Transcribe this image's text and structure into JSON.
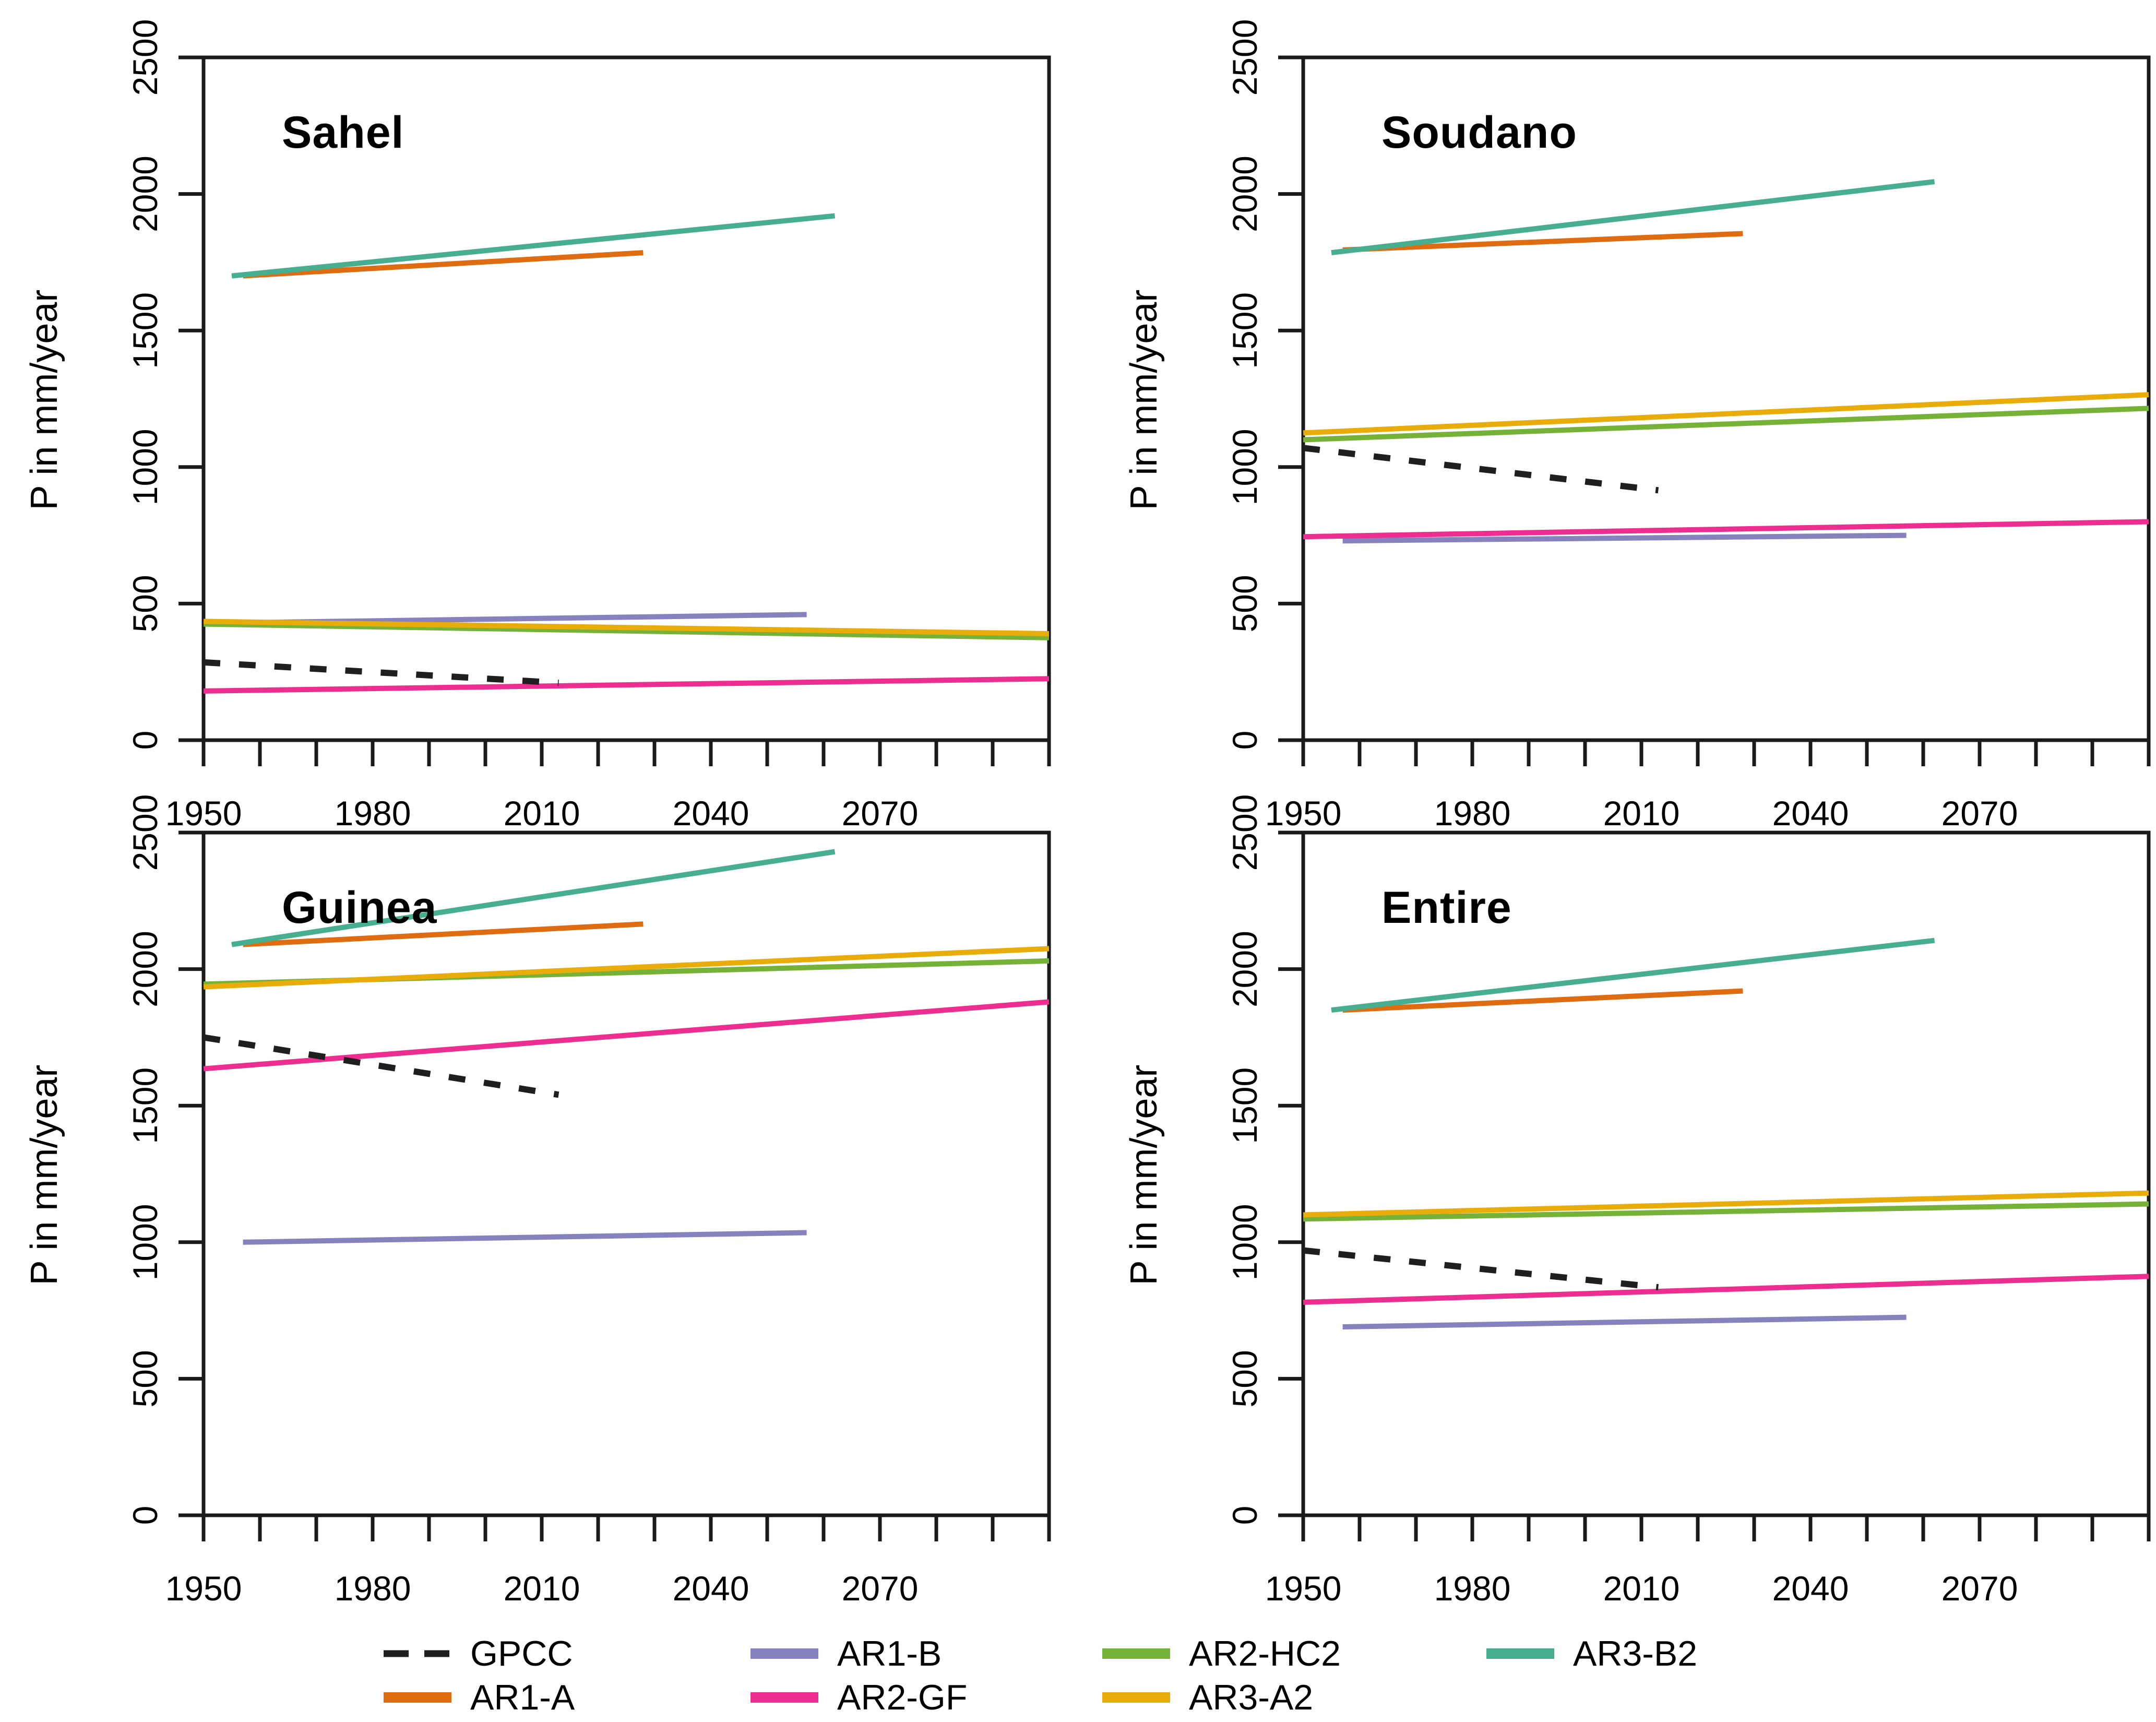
{
  "figure": {
    "background": "#ffffff",
    "frame_color": "#1a1a1a",
    "text_color": "#000000",
    "y_axis_label": "P in mm/year"
  },
  "series_styles": [
    {
      "name": "GPCC",
      "color": "#1f1f1f",
      "dashed": true
    },
    {
      "name": "AR1-A",
      "color": "#e06c12",
      "dashed": false
    },
    {
      "name": "AR1-B",
      "color": "#8781be",
      "dashed": false
    },
    {
      "name": "AR2-GF",
      "color": "#ed2d90",
      "dashed": false
    },
    {
      "name": "AR2-HC2",
      "color": "#76b237",
      "dashed": false
    },
    {
      "name": "AR3-A2",
      "color": "#e9ad0b",
      "dashed": false
    },
    {
      "name": "AR3-B2",
      "color": "#47af90",
      "dashed": false
    }
  ],
  "legend": {
    "columns": [
      [
        "GPCC",
        "AR1-A"
      ],
      [
        "AR1-B",
        "AR2-GF"
      ],
      [
        "AR2-HC2",
        "AR3-A2"
      ],
      [
        "AR3-B2"
      ]
    ]
  },
  "chart_data": [
    {
      "type": "line",
      "title": "Sahel",
      "xlabel": "",
      "ylabel": "P in mm/year",
      "xlim": [
        1950,
        2100
      ],
      "ylim": [
        0,
        2500
      ],
      "x_tick_interval": 10,
      "y_tick_interval": 500,
      "x_ticks_labeled": [
        1950,
        1980,
        2010,
        2040,
        2070
      ],
      "grid": false,
      "series": [
        {
          "name": "GPCC",
          "points": [
            [
              1950,
              285
            ],
            [
              2013,
              210
            ]
          ]
        },
        {
          "name": "AR1-A",
          "points": [
            [
              1957,
              1700
            ],
            [
              2028,
              1785
            ]
          ]
        },
        {
          "name": "AR1-B",
          "points": [
            [
              1957,
              430
            ],
            [
              2057,
              460
            ]
          ]
        },
        {
          "name": "AR2-GF",
          "points": [
            [
              1950,
              180
            ],
            [
              2100,
              225
            ]
          ]
        },
        {
          "name": "AR2-HC2",
          "points": [
            [
              1950,
              425
            ],
            [
              2100,
              375
            ]
          ]
        },
        {
          "name": "AR3-A2",
          "points": [
            [
              1950,
              435
            ],
            [
              2100,
              390
            ]
          ]
        },
        {
          "name": "AR3-B2",
          "points": [
            [
              1955,
              1700
            ],
            [
              2062,
              1920
            ]
          ]
        }
      ]
    },
    {
      "type": "line",
      "title": "Soudano",
      "xlabel": "",
      "ylabel": "P in mm/year",
      "xlim": [
        1950,
        2100
      ],
      "ylim": [
        0,
        2500
      ],
      "x_tick_interval": 10,
      "y_tick_interval": 500,
      "x_ticks_labeled": [
        1950,
        1980,
        2010,
        2040,
        2070
      ],
      "grid": false,
      "series": [
        {
          "name": "GPCC",
          "points": [
            [
              1950,
              1070
            ],
            [
              2013,
              915
            ]
          ]
        },
        {
          "name": "AR1-A",
          "points": [
            [
              1957,
              1795
            ],
            [
              2028,
              1855
            ]
          ]
        },
        {
          "name": "AR1-B",
          "points": [
            [
              1957,
              730
            ],
            [
              2057,
              750
            ]
          ]
        },
        {
          "name": "AR2-GF",
          "points": [
            [
              1950,
              745
            ],
            [
              2100,
              800
            ]
          ]
        },
        {
          "name": "AR2-HC2",
          "points": [
            [
              1950,
              1100
            ],
            [
              2100,
              1215
            ]
          ]
        },
        {
          "name": "AR3-A2",
          "points": [
            [
              1950,
              1125
            ],
            [
              2100,
              1265
            ]
          ]
        },
        {
          "name": "AR3-B2",
          "points": [
            [
              1955,
              1785
            ],
            [
              2062,
              2045
            ]
          ]
        }
      ]
    },
    {
      "type": "line",
      "title": "Guinea",
      "xlabel": "",
      "ylabel": "P in mm/year",
      "xlim": [
        1950,
        2100
      ],
      "ylim": [
        0,
        2500
      ],
      "x_tick_interval": 10,
      "y_tick_interval": 500,
      "x_ticks_labeled": [
        1950,
        1980,
        2010,
        2040,
        2070
      ],
      "grid": false,
      "series": [
        {
          "name": "GPCC",
          "points": [
            [
              1950,
              1750
            ],
            [
              2013,
              1540
            ]
          ]
        },
        {
          "name": "AR1-A",
          "points": [
            [
              1957,
              2090
            ],
            [
              2028,
              2165
            ]
          ]
        },
        {
          "name": "AR1-B",
          "points": [
            [
              1957,
              1000
            ],
            [
              2057,
              1035
            ]
          ]
        },
        {
          "name": "AR2-GF",
          "points": [
            [
              1950,
              1635
            ],
            [
              2100,
              1880
            ]
          ]
        },
        {
          "name": "AR2-HC2",
          "points": [
            [
              1950,
              1945
            ],
            [
              2100,
              2030
            ]
          ]
        },
        {
          "name": "AR3-A2",
          "points": [
            [
              1950,
              1935
            ],
            [
              2100,
              2075
            ]
          ]
        },
        {
          "name": "AR3-B2",
          "points": [
            [
              1955,
              2090
            ],
            [
              2062,
              2430
            ]
          ]
        }
      ]
    },
    {
      "type": "line",
      "title": "Entire",
      "xlabel": "",
      "ylabel": "P in mm/year",
      "xlim": [
        1950,
        2100
      ],
      "ylim": [
        0,
        2500
      ],
      "x_tick_interval": 10,
      "y_tick_interval": 500,
      "x_ticks_labeled": [
        1950,
        1980,
        2010,
        2040,
        2070
      ],
      "grid": false,
      "series": [
        {
          "name": "GPCC",
          "points": [
            [
              1950,
              970
            ],
            [
              2013,
              835
            ]
          ]
        },
        {
          "name": "AR1-A",
          "points": [
            [
              1957,
              1850
            ],
            [
              2028,
              1920
            ]
          ]
        },
        {
          "name": "AR1-B",
          "points": [
            [
              1957,
              690
            ],
            [
              2057,
              725
            ]
          ]
        },
        {
          "name": "AR2-GF",
          "points": [
            [
              1950,
              780
            ],
            [
              2100,
              875
            ]
          ]
        },
        {
          "name": "AR2-HC2",
          "points": [
            [
              1950,
              1085
            ],
            [
              2100,
              1140
            ]
          ]
        },
        {
          "name": "AR3-A2",
          "points": [
            [
              1950,
              1100
            ],
            [
              2100,
              1180
            ]
          ]
        },
        {
          "name": "AR3-B2",
          "points": [
            [
              1955,
              1850
            ],
            [
              2062,
              2105
            ]
          ]
        }
      ]
    }
  ]
}
